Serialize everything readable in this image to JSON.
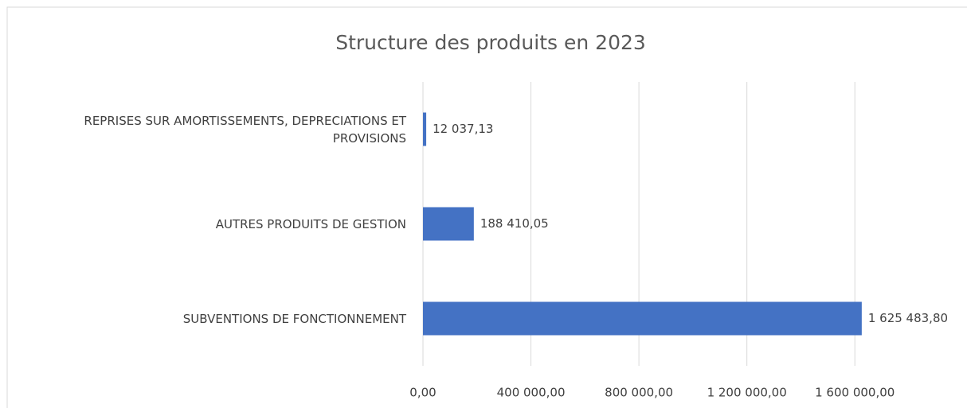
{
  "chart_data": {
    "type": "hbar",
    "title": "Structure des produits en 2023",
    "categories": [
      "REPRISES SUR AMORTISSEMENTS, DEPRECIATIONS ET PROVISIONS",
      "AUTRES PRODUITS DE GESTION",
      "SUBVENTIONS DE FONCTIONNEMENT"
    ],
    "values": [
      12037.13,
      188410.05,
      1625483.8
    ],
    "value_labels": [
      "12 037,13",
      "188 410,05",
      "1 625 483,80"
    ],
    "color": "#4472c4",
    "xlim": [
      0,
      1800000
    ],
    "xticks": [
      {
        "value": 0,
        "label": "0,00"
      },
      {
        "value": 400000,
        "label": "400 000,00"
      },
      {
        "value": 800000,
        "label": "800 000,00"
      },
      {
        "value": 1200000,
        "label": "1 200 000,00"
      },
      {
        "value": 1600000,
        "label": "1 600 000,00"
      }
    ],
    "grid": true
  }
}
